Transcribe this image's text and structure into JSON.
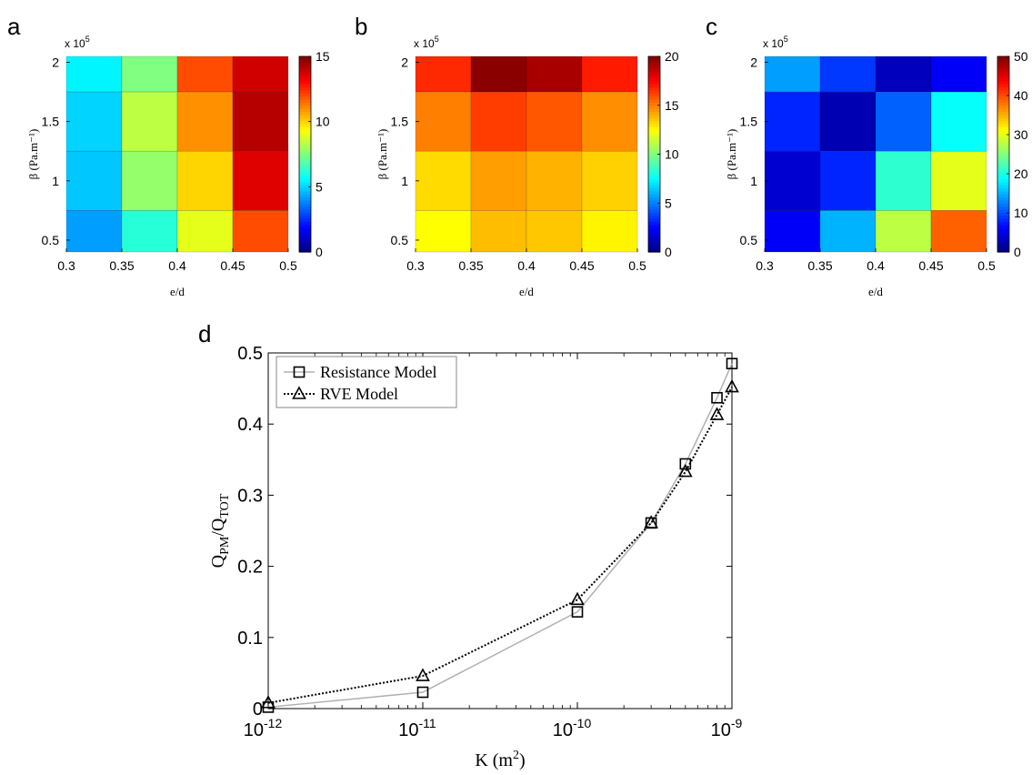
{
  "panels": {
    "a": "a",
    "b": "b",
    "c": "c",
    "d": "d"
  },
  "chart_data": [
    {
      "type": "heatmap",
      "panel": "a",
      "xlabel": "e/d",
      "ylabel": "β (Pa.m⁻¹)",
      "y_exponent_label": "x 10",
      "y_exponent_power": "5",
      "x_edges": [
        0.3,
        0.35,
        0.4,
        0.45,
        0.5
      ],
      "x_tick_labels": [
        "0.3",
        "0.35",
        "0.4",
        "0.45",
        "0.5"
      ],
      "y_ticks": [
        0.5,
        1,
        1.5,
        2
      ],
      "y_tick_labels": [
        "0.5",
        "1",
        "1.5",
        "2"
      ],
      "y_range": [
        0.4,
        2.05
      ],
      "colorbar_range": [
        0,
        15
      ],
      "colorbar_ticks": [
        "0",
        "5",
        "10",
        "15"
      ],
      "values": [
        [
          5.5,
          7.5,
          12.0,
          13.8
        ],
        [
          5.0,
          8.4,
          11.0,
          14.2
        ],
        [
          4.8,
          7.8,
          10.0,
          13.6
        ],
        [
          4.2,
          6.2,
          9.0,
          12.0
        ]
      ]
    },
    {
      "type": "heatmap",
      "panel": "b",
      "xlabel": "e/d",
      "ylabel": "β (Pa.m⁻¹)",
      "y_exponent_label": "x 10",
      "y_exponent_power": "5",
      "x_edges": [
        0.3,
        0.35,
        0.4,
        0.45,
        0.5
      ],
      "x_tick_labels": [
        "0.3",
        "0.35",
        "0.4",
        "0.45",
        "0.5"
      ],
      "y_ticks": [
        0.5,
        1,
        1.5,
        2
      ],
      "y_tick_labels": [
        "0.5",
        "1",
        "1.5",
        "2"
      ],
      "y_range": [
        0.4,
        2.05
      ],
      "colorbar_range": [
        0,
        20
      ],
      "colorbar_ticks": [
        "0",
        "5",
        "10",
        "15",
        "20"
      ],
      "values": [
        [
          16.7,
          19.8,
          19.2,
          17.0
        ],
        [
          15.0,
          16.3,
          15.8,
          14.7
        ],
        [
          13.2,
          14.4,
          14.0,
          13.4
        ],
        [
          12.5,
          13.8,
          13.6,
          12.7
        ]
      ]
    },
    {
      "type": "heatmap",
      "panel": "c",
      "xlabel": "e/d",
      "ylabel": "β (Pa.m⁻¹)",
      "y_exponent_label": "x 10",
      "y_exponent_power": "5",
      "x_edges": [
        0.3,
        0.35,
        0.4,
        0.45,
        0.5
      ],
      "x_tick_labels": [
        "0.3",
        "0.35",
        "0.4",
        "0.45",
        "0.5"
      ],
      "y_ticks": [
        0.5,
        1,
        1.5,
        2
      ],
      "y_tick_labels": [
        "0.5",
        "1",
        "1.5",
        "2"
      ],
      "y_range": [
        0.4,
        2.05
      ],
      "colorbar_range": [
        0,
        50
      ],
      "colorbar_ticks": [
        "0",
        "10",
        "20",
        "30",
        "40",
        "50"
      ],
      "values": [
        [
          14.0,
          9.0,
          3.0,
          6.0
        ],
        [
          8.0,
          2.5,
          11.0,
          19.0
        ],
        [
          4.0,
          8.0,
          21.0,
          30.0
        ],
        [
          6.0,
          15.0,
          28.0,
          39.0
        ]
      ]
    },
    {
      "type": "line",
      "panel": "d",
      "xlabel_base": "K (m",
      "xlabel_sup": "2",
      "xlabel_end": ")",
      "ylabel_main": "Q",
      "ylabel_sub1": "PM",
      "ylabel_mid": "/Q",
      "ylabel_sub2": "TOT",
      "x_scale": "log",
      "x_range_exp": [
        -12,
        -9
      ],
      "x_tick_base": "10",
      "x_tick_exponents": [
        "-12",
        "-11",
        "-10",
        "-9"
      ],
      "y_range": [
        0,
        0.5
      ],
      "y_ticks": [
        0,
        0.1,
        0.2,
        0.3,
        0.4,
        0.5
      ],
      "y_tick_labels": [
        "0",
        "0.1",
        "0.2",
        "0.3",
        "0.4",
        "0.5"
      ],
      "legend_position": "top-left",
      "series": [
        {
          "name": "Resistance Model",
          "marker": "square",
          "color": "#b0b0b0",
          "dash": "solid",
          "x": [
            1e-12,
            1e-11,
            1e-10,
            3e-10,
            5e-10,
            8e-10,
            1e-09
          ],
          "y": [
            0.002,
            0.023,
            0.136,
            0.261,
            0.344,
            0.437,
            0.485
          ]
        },
        {
          "name": "RVE Model",
          "marker": "triangle",
          "color": "#000000",
          "dash": "dotted",
          "x": [
            1e-12,
            1e-11,
            1e-10,
            3e-10,
            5e-10,
            8e-10,
            1e-09
          ],
          "y": [
            0.008,
            0.046,
            0.153,
            0.261,
            0.333,
            0.413,
            0.452
          ]
        }
      ]
    }
  ]
}
